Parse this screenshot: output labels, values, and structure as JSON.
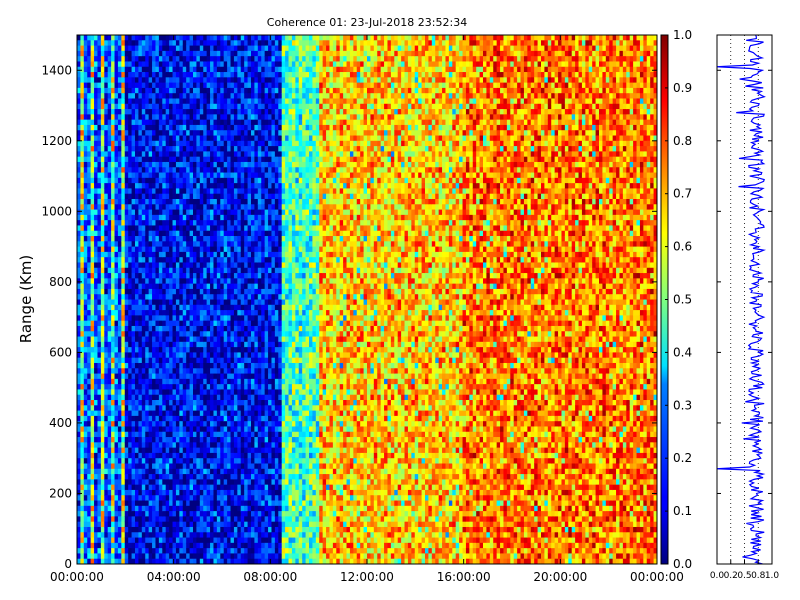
{
  "chart_data": [
    {
      "type": "heatmap",
      "title": "Coherence 01: 23-Jul-2018 23:52:34",
      "xlabel": "",
      "ylabel": "Range (Km)",
      "x_tick_labels": [
        "00:00:00",
        "04:00:00",
        "08:00:00",
        "12:00:00",
        "16:00:00",
        "20:00:00",
        "00:00:00"
      ],
      "xlim": [
        "00:00:00",
        "24:00:00"
      ],
      "y_ticks": [
        0,
        200,
        400,
        600,
        800,
        1000,
        1200,
        1400
      ],
      "ylim": [
        0,
        1500
      ],
      "colormap": "jet",
      "colorbar": {
        "ticks": [
          0.0,
          0.1,
          0.2,
          0.3,
          0.4,
          0.5,
          0.6,
          0.7,
          0.8,
          0.9,
          1.0
        ],
        "tick_labels": [
          "0.0",
          "0.1",
          "0.2",
          "0.3",
          "0.4",
          "0.5",
          "0.6",
          "0.7",
          "0.8",
          "0.9",
          "1.0"
        ],
        "range": [
          0,
          1
        ]
      },
      "segments": [
        {
          "from": "00:00:00",
          "to": "02:00:00",
          "coherence": 0.2,
          "pattern": "alternating vertical stripes"
        },
        {
          "from": "02:00:00",
          "to": "08:30:00",
          "coherence": 0.12
        },
        {
          "from": "08:30:00",
          "to": "10:00:00",
          "coherence": 0.45
        },
        {
          "from": "10:00:00",
          "to": "16:00:00",
          "coherence": 0.68
        },
        {
          "from": "16:00:00",
          "to": "24:00:00",
          "coherence": 0.76
        }
      ]
    },
    {
      "type": "line",
      "orientation": "vertical",
      "x_tick_labels": [
        "0.0",
        "0.2",
        "0.5",
        "0.8",
        "1.0"
      ],
      "x_ticks": [
        0.0,
        0.25,
        0.5,
        0.75,
        1.0
      ],
      "xlim": [
        0,
        1
      ],
      "ylim": [
        0,
        1500
      ],
      "grid": "vertical dotted",
      "series_color": "#0000ff",
      "baseline": 0.72,
      "dips": [
        {
          "range": 270,
          "value": 0.0
        },
        {
          "range": 1410,
          "value": 0.0
        },
        {
          "range": 1280,
          "value": 0.35
        },
        {
          "range": 1150,
          "value": 0.4
        },
        {
          "range": 400,
          "value": 0.45
        }
      ]
    }
  ]
}
